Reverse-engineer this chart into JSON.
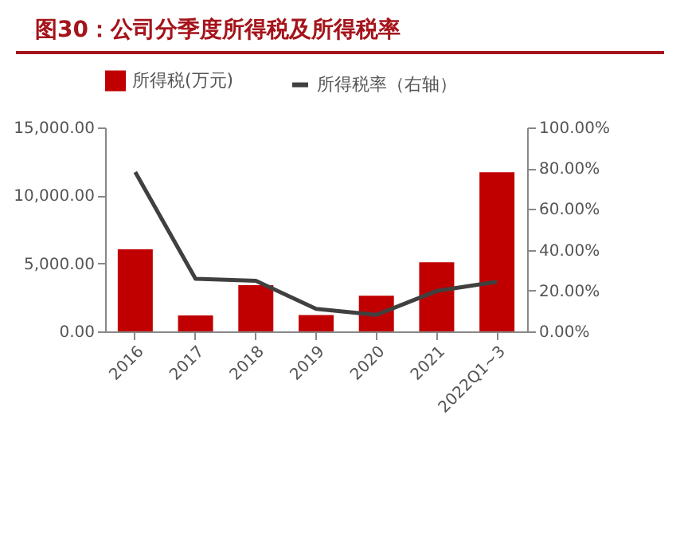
{
  "chart_data": {
    "type": "bar",
    "title": "图30：公司分季度所得税及所得税率",
    "categories": [
      "2016",
      "2017",
      "2018",
      "2019",
      "2020",
      "2021",
      "2022Q1~3"
    ],
    "series": [
      {
        "name": "所得税(万元)",
        "color": "#c00000",
        "values": [
          6030,
          1175,
          3400,
          1200,
          2620,
          5090,
          11710
        ]
      },
      {
        "name": "所得税率（右轴）",
        "type": "line",
        "axis": "y2",
        "color": "#404040",
        "values": [
          78.1,
          25.8,
          24.8,
          11.0,
          8.1,
          19.8,
          24.3
        ]
      }
    ],
    "ylim": [
      0,
      15000
    ],
    "yticks": [
      {
        "value": 0,
        "label": "0.00"
      },
      {
        "value": 5000,
        "label": "5,000.00"
      },
      {
        "value": 10000,
        "label": "10,000.00"
      },
      {
        "value": 15000,
        "label": "15,000.00"
      }
    ],
    "y2lim": [
      0,
      100
    ],
    "y2ticks": [
      {
        "value": 0,
        "label": "0.00%"
      },
      {
        "value": 20,
        "label": "20.00%"
      },
      {
        "value": 40,
        "label": "40.00%"
      },
      {
        "value": 60,
        "label": "60.00%"
      },
      {
        "value": 80,
        "label": "80.00%"
      },
      {
        "value": 100,
        "label": "100.00%"
      }
    ],
    "grid": false,
    "legend": "top",
    "marker": "none",
    "line_style": "solid"
  }
}
